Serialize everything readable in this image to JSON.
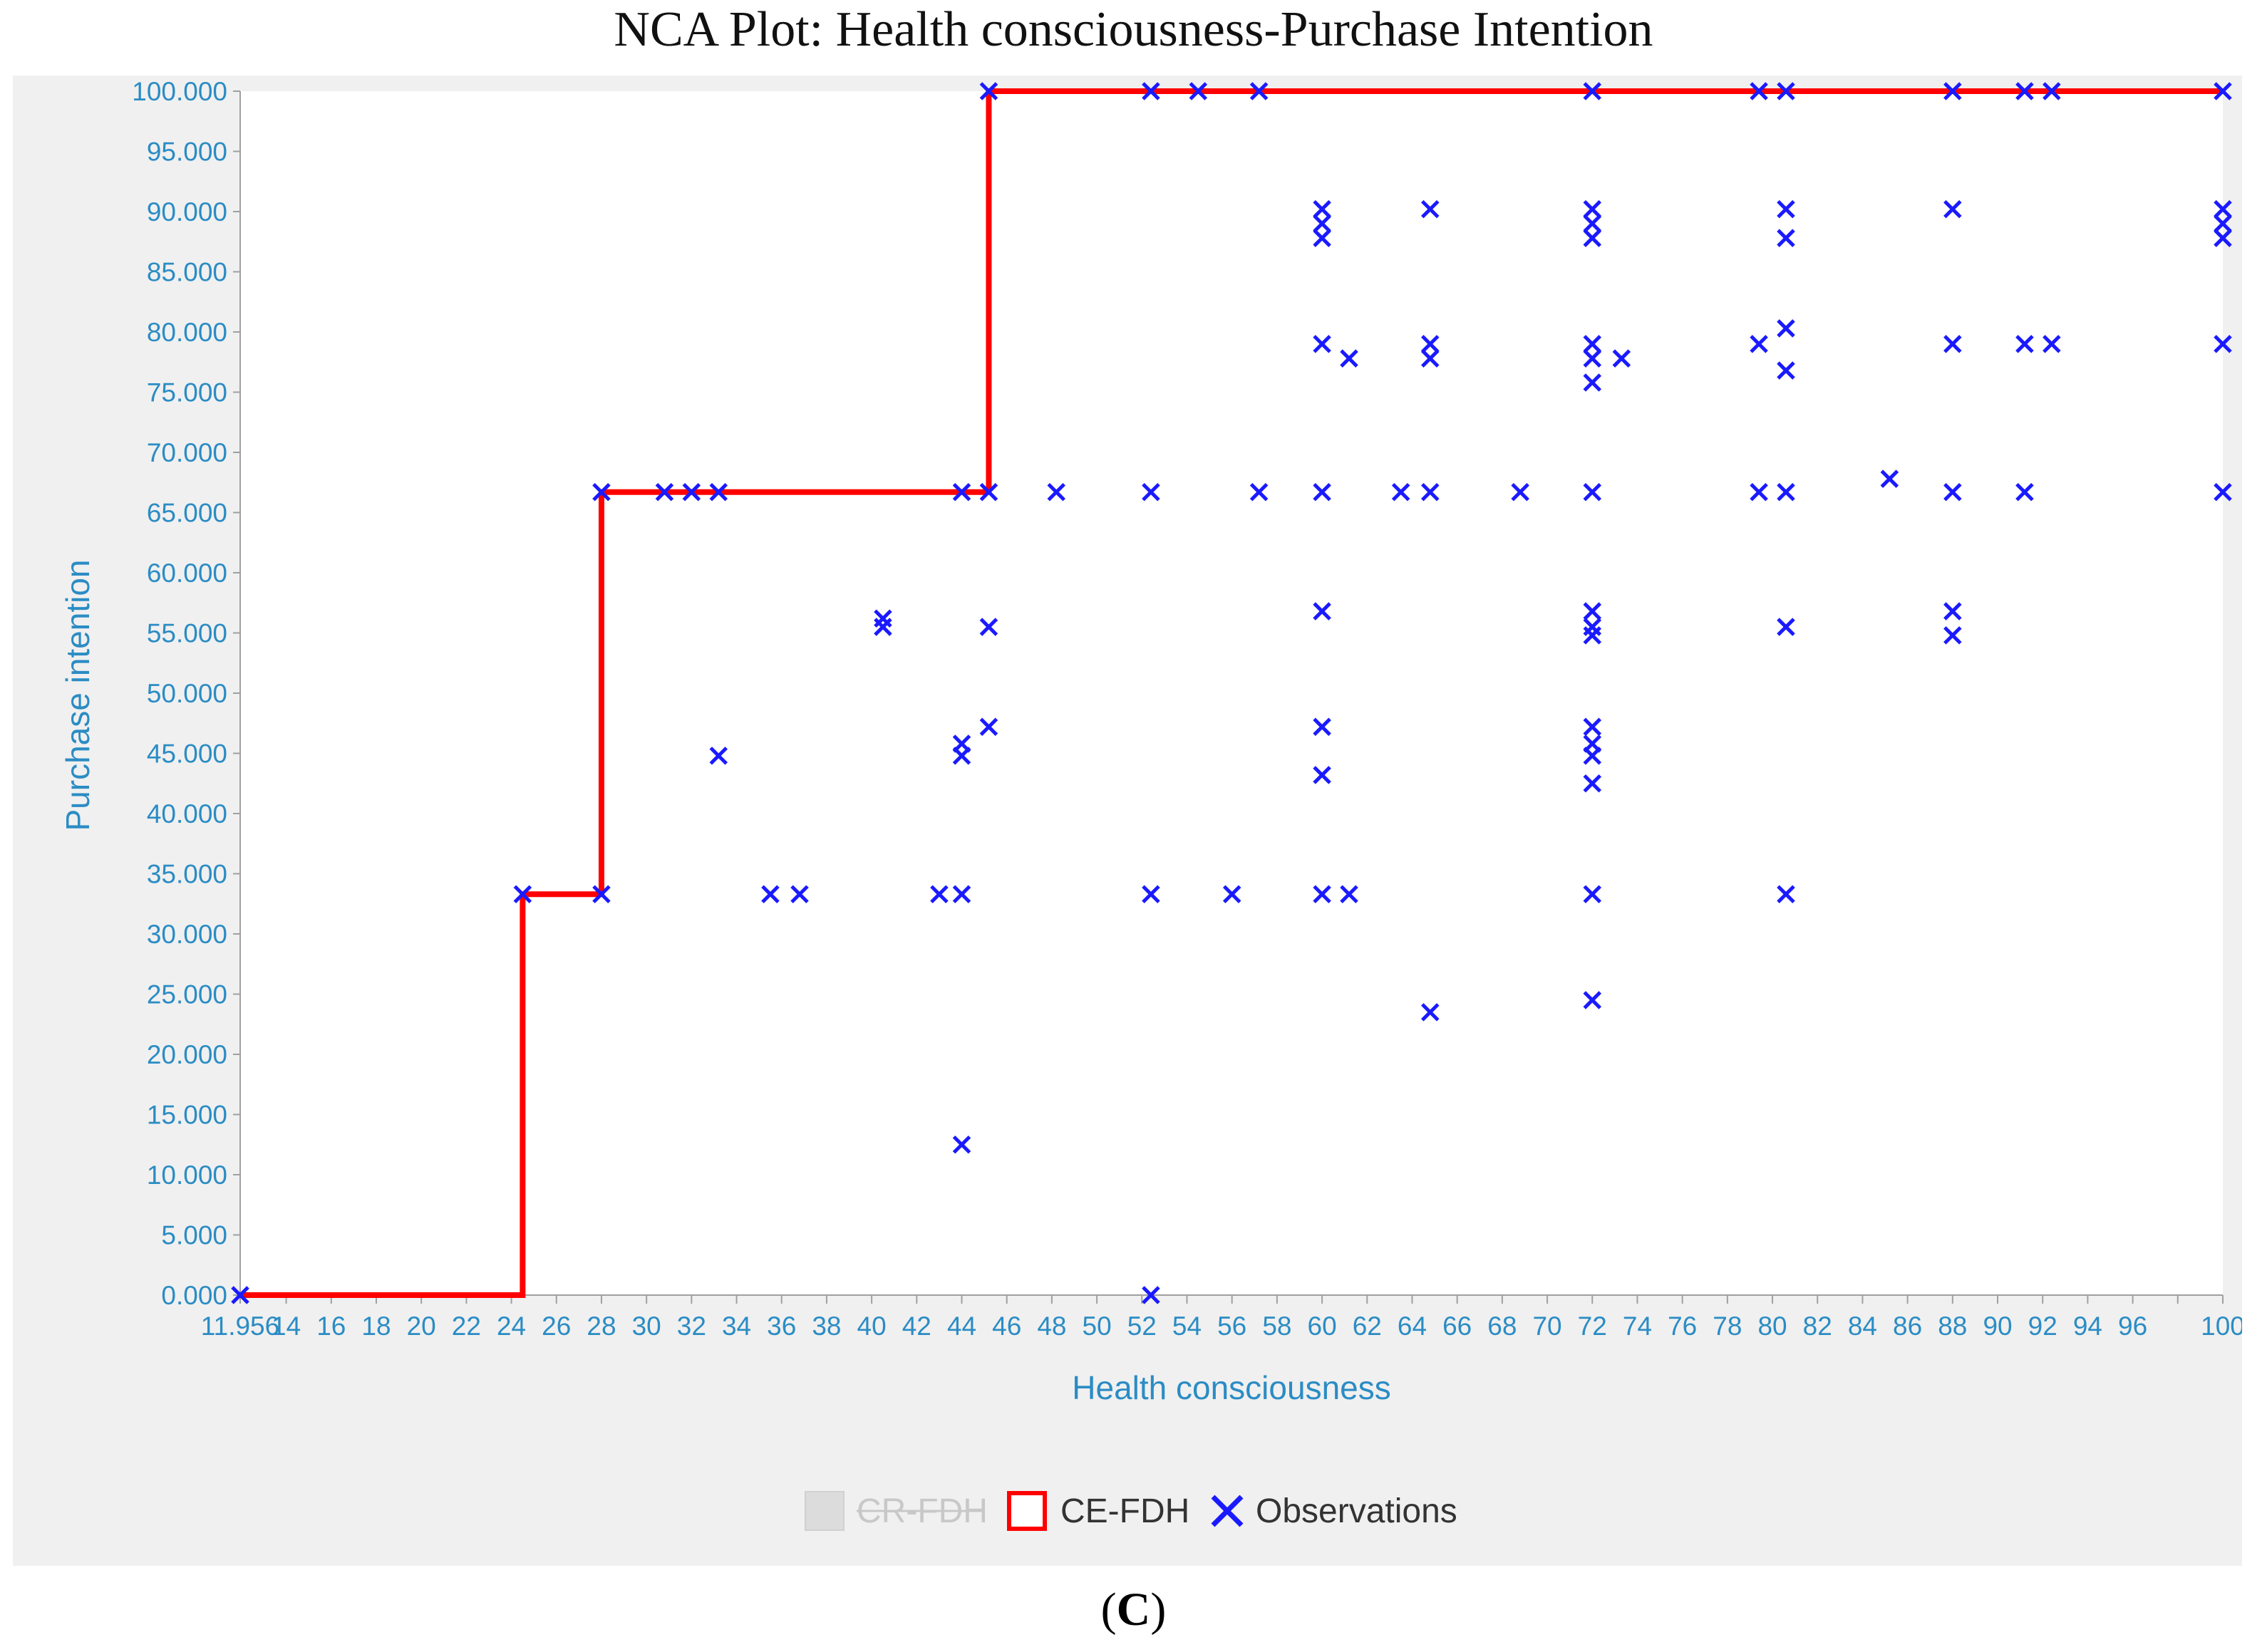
{
  "figure": {
    "title": "NCA Plot: Health consciousness-Purchase Intention",
    "panel_open": "(",
    "panel_letter": "C",
    "panel_close": ")"
  },
  "colors": {
    "axis_text": "#2b8cc4",
    "ceiling_line": "#ff0000",
    "observations": "#1a1aff",
    "legend_disabled": "#c8c8c8",
    "panel_background": "#f0f0f0",
    "plot_background": "#ffffff"
  },
  "legend": {
    "items": [
      {
        "label": "CR-FDH",
        "marker": "square-filled",
        "disabled": true
      },
      {
        "label": "CE-FDH",
        "marker": "square-outline",
        "disabled": false
      },
      {
        "label": "Observations",
        "marker": "x",
        "disabled": false
      }
    ]
  },
  "chart_data": {
    "type": "scatter",
    "xlabel": "Health consciousness",
    "ylabel": "Purchase intention",
    "xlim": [
      11.956,
      100
    ],
    "ylim": [
      0,
      100
    ],
    "grid": false,
    "legend_position": "bottom",
    "x_ticks": [
      "11.956",
      "14",
      "16",
      "18",
      "20",
      "22",
      "24",
      "26",
      "28",
      "30",
      "32",
      "34",
      "36",
      "38",
      "40",
      "42",
      "44",
      "46",
      "48",
      "50",
      "52",
      "54",
      "56",
      "58",
      "60",
      "62",
      "64",
      "66",
      "68",
      "70",
      "72",
      "74",
      "76",
      "78",
      "80",
      "82",
      "84",
      "86",
      "88",
      "90",
      "92",
      "94",
      "96",
      "100"
    ],
    "y_ticks": [
      "0.000",
      "5.000",
      "10.000",
      "15.000",
      "20.000",
      "25.000",
      "30.000",
      "35.000",
      "40.000",
      "45.000",
      "50.000",
      "55.000",
      "60.000",
      "65.000",
      "70.000",
      "75.000",
      "80.000",
      "85.000",
      "90.000",
      "95.000",
      "100.000"
    ],
    "series": [
      {
        "name": "CE-FDH",
        "kind": "step-line",
        "x": [
          11.956,
          24.5,
          24.5,
          28,
          28,
          45.2,
          45.2,
          100
        ],
        "y": [
          0,
          0,
          33.3,
          33.3,
          66.7,
          66.7,
          100,
          100
        ]
      },
      {
        "name": "Observations",
        "kind": "x-marker",
        "points": [
          [
            11.956,
            0
          ],
          [
            52.4,
            0
          ],
          [
            64.8,
            23.5
          ],
          [
            72,
            24.5
          ],
          [
            44,
            12.5
          ],
          [
            24.5,
            33.3
          ],
          [
            28,
            33.3
          ],
          [
            35.5,
            33.3
          ],
          [
            36.8,
            33.3
          ],
          [
            43,
            33.3
          ],
          [
            44,
            33.3
          ],
          [
            52.4,
            33.3
          ],
          [
            56,
            33.3
          ],
          [
            60,
            33.3
          ],
          [
            61.2,
            33.3
          ],
          [
            72,
            33.3
          ],
          [
            80.6,
            33.3
          ],
          [
            72,
            42.5
          ],
          [
            60,
            43.2
          ],
          [
            33.2,
            44.8
          ],
          [
            44,
            44.8
          ],
          [
            72,
            44.8
          ],
          [
            44,
            45.8
          ],
          [
            72,
            45.8
          ],
          [
            45.2,
            47.2
          ],
          [
            60,
            47.2
          ],
          [
            72,
            47.2
          ],
          [
            72,
            54.8
          ],
          [
            88,
            54.8
          ],
          [
            40.5,
            55.5
          ],
          [
            72,
            55.5
          ],
          [
            45.2,
            55.5
          ],
          [
            80.6,
            55.5
          ],
          [
            40.5,
            56.2
          ],
          [
            60,
            56.8
          ],
          [
            72,
            56.8
          ],
          [
            88,
            56.8
          ],
          [
            28,
            66.7
          ],
          [
            30.8,
            66.7
          ],
          [
            32,
            66.7
          ],
          [
            33.2,
            66.7
          ],
          [
            44,
            66.7
          ],
          [
            45.2,
            66.7
          ],
          [
            48.2,
            66.7
          ],
          [
            52.4,
            66.7
          ],
          [
            57.2,
            66.7
          ],
          [
            60,
            66.7
          ],
          [
            63.5,
            66.7
          ],
          [
            64.8,
            66.7
          ],
          [
            68.8,
            66.7
          ],
          [
            72,
            66.7
          ],
          [
            79.4,
            66.7
          ],
          [
            80.6,
            66.7
          ],
          [
            88,
            66.7
          ],
          [
            91.2,
            66.7
          ],
          [
            100,
            66.7
          ],
          [
            85.2,
            67.8
          ],
          [
            72,
            75.8
          ],
          [
            80.6,
            76.8
          ],
          [
            61.2,
            77.8
          ],
          [
            64.8,
            77.8
          ],
          [
            72,
            77.8
          ],
          [
            73.3,
            77.8
          ],
          [
            60,
            79
          ],
          [
            64.8,
            79
          ],
          [
            72,
            79
          ],
          [
            79.4,
            79
          ],
          [
            88,
            79
          ],
          [
            91.2,
            79
          ],
          [
            92.4,
            79
          ],
          [
            100,
            79
          ],
          [
            80.6,
            80.3
          ],
          [
            60,
            87.8
          ],
          [
            72,
            87.8
          ],
          [
            80.6,
            87.8
          ],
          [
            100,
            87.8
          ],
          [
            60,
            89
          ],
          [
            72,
            89
          ],
          [
            100,
            89
          ],
          [
            60,
            90.2
          ],
          [
            64.8,
            90.2
          ],
          [
            72,
            90.2
          ],
          [
            80.6,
            90.2
          ],
          [
            88,
            90.2
          ],
          [
            100,
            90.2
          ],
          [
            45.2,
            100
          ],
          [
            52.4,
            100
          ],
          [
            54.5,
            100
          ],
          [
            57.2,
            100
          ],
          [
            72,
            100
          ],
          [
            79.4,
            100
          ],
          [
            80.6,
            100
          ],
          [
            88,
            100
          ],
          [
            91.2,
            100
          ],
          [
            92.4,
            100
          ],
          [
            100,
            100
          ]
        ]
      }
    ]
  }
}
